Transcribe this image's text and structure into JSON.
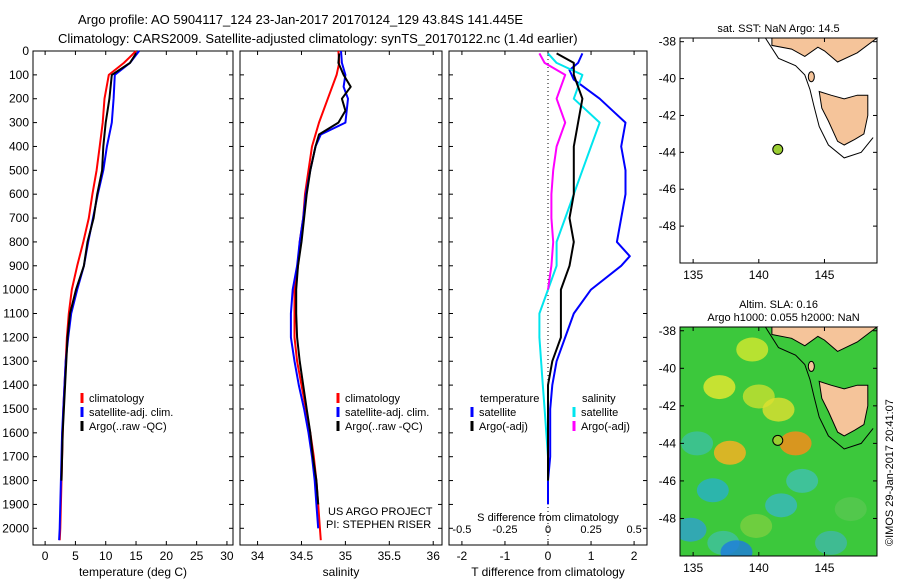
{
  "header": {
    "line1": "Argo profile: AO 5904117_124 23-Jan-2017 20170124_129 43.84S 141.445E",
    "line2": "Climatology: CARS2009. Satellite-adjusted climatology: synTS_20170122.nc (1.4d earlier)"
  },
  "colors": {
    "climatology": "#ff0000",
    "satellite": "#0000ff",
    "argo": "#000000",
    "salinity_satellite": "#00e5ee",
    "salinity_argo": "#ff00ff",
    "land": "#f5c49a",
    "marker": "#9acd32"
  },
  "credits": {
    "project": "US ARGO PROJECT",
    "pi": "PI: STEPHEN RISER",
    "imos": "©IMOS 29-Jan-2017 20:41:07"
  },
  "chart_data": [
    {
      "type": "line",
      "xlabel": "temperature (deg C)",
      "xticks": [
        "0",
        "5",
        "10",
        "15",
        "20",
        "25",
        "30"
      ],
      "xlim": [
        -2,
        31
      ],
      "ylim": [
        0,
        2070
      ],
      "yticks": [
        "0",
        "100",
        "200",
        "300",
        "400",
        "500",
        "600",
        "700",
        "800",
        "900",
        "1000",
        "1100",
        "1200",
        "1300",
        "1400",
        "1500",
        "1600",
        "1700",
        "1800",
        "1900",
        "2000"
      ],
      "legend": [
        "climatology",
        "satellite-adj. clim.",
        "Argo(..raw -QC)"
      ],
      "series": [
        {
          "name": "climatology",
          "depth": [
            0,
            50,
            100,
            200,
            300,
            400,
            500,
            600,
            700,
            800,
            900,
            1000,
            1100,
            1200,
            1300,
            1400,
            1500,
            1600,
            1700,
            1800,
            1900,
            2000,
            2050
          ],
          "values": [
            15,
            13,
            10.5,
            9.8,
            9.5,
            9.0,
            8.5,
            7.8,
            7.2,
            6.3,
            5.3,
            4.4,
            3.9,
            3.6,
            3.4,
            3.2,
            3.0,
            2.9,
            2.8,
            2.7,
            2.6,
            2.5,
            2.4
          ]
        },
        {
          "name": "satellite-adj. clim.",
          "depth": [
            0,
            50,
            100,
            200,
            300,
            400,
            500,
            600,
            700,
            800,
            900,
            1000,
            1100,
            1200,
            1300,
            1400,
            1500,
            1600,
            1700,
            1800,
            1900,
            2000,
            2050
          ],
          "values": [
            15.5,
            14,
            11.5,
            11.3,
            11.0,
            10.2,
            9.6,
            8.7,
            7.9,
            7.1,
            6.4,
            5.3,
            4.3,
            3.8,
            3.4,
            3.2,
            3.0,
            2.8,
            2.7,
            2.6,
            2.5,
            2.4,
            2.3
          ]
        },
        {
          "name": "Argo(..raw -QC)",
          "depth": [
            10,
            50,
            100,
            150,
            200,
            300,
            400,
            500,
            600,
            700,
            800,
            900,
            1000,
            1100,
            1200,
            1300,
            1400,
            1500,
            1600,
            1700,
            1800
          ],
          "values": [
            15,
            14,
            11,
            10.8,
            10.6,
            10.0,
            9.6,
            9.4,
            8.6,
            8.0,
            7.0,
            6.4,
            5.1,
            4.1,
            3.7,
            3.5,
            3.3,
            3.1,
            2.9,
            2.8,
            2.7
          ]
        }
      ]
    },
    {
      "type": "line",
      "xlabel": "salinity",
      "xticks": [
        "34",
        "34.5",
        "35",
        "35.5",
        "36"
      ],
      "xlim": [
        33.8,
        36.1
      ],
      "ylim": [
        0,
        2070
      ],
      "legend": [
        "climatology",
        "satellite-adj. clim.",
        "Argo(..raw -QC)"
      ],
      "series": [
        {
          "name": "climatology",
          "depth": [
            0,
            50,
            100,
            200,
            300,
            400,
            500,
            600,
            700,
            800,
            900,
            1000,
            1100,
            1200,
            1300,
            1400,
            1500,
            1600,
            1700,
            1800,
            1900,
            2000,
            2050
          ],
          "values": [
            34.92,
            34.93,
            34.9,
            34.8,
            34.7,
            34.62,
            34.58,
            34.54,
            34.52,
            34.48,
            34.46,
            34.42,
            34.42,
            34.42,
            34.45,
            34.5,
            34.55,
            34.6,
            34.64,
            34.67,
            34.69,
            34.71,
            34.72
          ]
        },
        {
          "name": "satellite-adj. clim.",
          "depth": [
            0,
            50,
            100,
            150,
            200,
            300,
            350,
            400,
            500,
            600,
            700,
            800,
            900,
            1000,
            1100,
            1200,
            1300,
            1400,
            1500,
            1600,
            1700,
            1800,
            1900,
            2000
          ],
          "values": [
            34.95,
            34.96,
            35.0,
            34.98,
            35.03,
            35.0,
            34.72,
            34.66,
            34.6,
            34.55,
            34.52,
            34.48,
            34.45,
            34.4,
            34.38,
            34.38,
            34.42,
            34.47,
            34.53,
            34.58,
            34.62,
            34.65,
            34.67,
            34.69
          ]
        },
        {
          "name": "Argo(..raw -QC)",
          "depth": [
            10,
            50,
            100,
            150,
            200,
            250,
            300,
            350,
            400,
            500,
            600,
            700,
            800,
            900,
            1000,
            1100,
            1200,
            1300,
            1400,
            1500,
            1600,
            1700,
            1800,
            1900
          ],
          "values": [
            34.93,
            34.92,
            34.98,
            35.06,
            34.96,
            35.0,
            34.92,
            34.7,
            34.66,
            34.6,
            34.56,
            34.53,
            34.5,
            34.46,
            34.44,
            34.44,
            34.45,
            34.48,
            34.52,
            34.56,
            34.6,
            34.63,
            34.67,
            34.69
          ]
        }
      ]
    },
    {
      "type": "line",
      "xlabel": "T difference from climatology",
      "xlabel_top": "S difference from climatology",
      "xticks": [
        "-2",
        "-1",
        "0",
        "1",
        "2"
      ],
      "xticks_top": [
        "-0.5",
        "-0.25",
        "0",
        "0.25",
        "0.5"
      ],
      "xlim": [
        -2.3,
        2.3
      ],
      "ylim": [
        0,
        2070
      ],
      "legend_temperature": {
        "title": "temperature",
        "items": [
          "satellite",
          "Argo(-adj)"
        ]
      },
      "legend_salinity": {
        "title": "salinity",
        "items": [
          "satellite",
          "Argo(-adj)"
        ]
      },
      "series": [
        {
          "name": "temperature satellite",
          "depth": [
            10,
            50,
            80,
            120,
            200,
            250,
            300,
            400,
            500,
            600,
            700,
            800,
            860,
            900,
            1000,
            1100,
            1200,
            1300,
            1400,
            1500,
            1600,
            1700,
            1800,
            1900
          ],
          "values": [
            0.8,
            0.7,
            0.5,
            0.6,
            1.2,
            1.5,
            1.8,
            1.7,
            1.8,
            1.8,
            1.7,
            1.6,
            1.9,
            1.7,
            1.0,
            0.6,
            0.4,
            0.2,
            0.1,
            0.05,
            0.05,
            0.05,
            0.0,
            0.0
          ]
        },
        {
          "name": "temperature Argo(-adj)",
          "depth": [
            10,
            50,
            100,
            200,
            300,
            400,
            500,
            600,
            700,
            800,
            900,
            1000,
            1100,
            1200,
            1300,
            1400,
            1500,
            1600,
            1700,
            1800
          ],
          "values": [
            0.2,
            0.6,
            0.6,
            0.8,
            0.7,
            0.6,
            0.6,
            0.6,
            0.5,
            0.6,
            0.5,
            0.3,
            0.3,
            0.3,
            0.1,
            0.0,
            0.0,
            0.0,
            0.0,
            0.0
          ]
        },
        {
          "name": "salinity satellite",
          "depth": [
            10,
            50,
            100,
            200,
            300,
            400,
            500,
            600,
            700,
            800,
            900,
            1000,
            1100,
            1200,
            1300,
            1400,
            1500,
            1600,
            1700,
            1800
          ],
          "values": [
            0.0,
            0.05,
            0.2,
            0.15,
            0.3,
            0.25,
            0.2,
            0.15,
            0.1,
            0.05,
            0.05,
            0.0,
            -0.05,
            -0.05,
            -0.04,
            -0.03,
            -0.02,
            -0.01,
            0.0,
            0.0
          ]
        },
        {
          "name": "salinity Argo(-adj)",
          "depth": [
            10,
            50,
            100,
            200,
            300,
            400,
            500,
            600,
            700,
            800,
            900,
            1000
          ],
          "values": [
            -0.05,
            -0.02,
            0.1,
            0.05,
            0.1,
            0.05,
            0.03,
            0.02,
            0.02,
            0.03,
            0.02,
            0.0
          ]
        }
      ]
    }
  ],
  "maps": {
    "sst_title": "sat. SST: NaN Argo: 14.5",
    "sla_title1": "Altim. SLA: 0.16",
    "sla_title2": "Argo h1000: 0.055 h2000: NaN",
    "yticks": [
      "-38",
      "-40",
      "-42",
      "-44",
      "-46",
      "-48"
    ],
    "xticks": [
      "135",
      "140",
      "145"
    ],
    "xlim": [
      134,
      149
    ],
    "ylim": [
      -50,
      -37.8
    ],
    "argo_position": {
      "lon": 141.445,
      "lat": -43.84
    }
  }
}
